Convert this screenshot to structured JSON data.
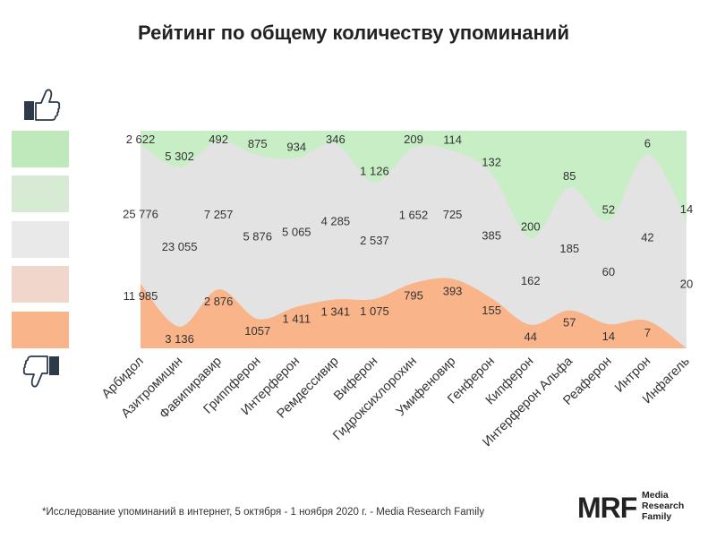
{
  "chart_data": {
    "type": "area",
    "title": "Рейтинг по общему количеству упоминаний",
    "categories": [
      "Арбидол",
      "Азитромицин",
      "Фавипиравир",
      "Гриппферон",
      "Интерферон",
      "Ремдессивир",
      "Виферон",
      "Гидроксихлорохин",
      "Умифеновир",
      "Генферон",
      "Кипферон",
      "Интерферон Альфа",
      "Реаферон",
      "Интрон",
      "Инфагель"
    ],
    "positive_labels": [
      "2 622",
      "5 302",
      "492",
      "875",
      "934",
      "346",
      "1 126",
      "209",
      "114",
      "132",
      "200",
      "85",
      "52",
      "6",
      "14"
    ],
    "neutral_labels": [
      "25 776",
      "23 055",
      "7 257",
      "5 876",
      "5 065",
      "4 285",
      "2 537",
      "1 652",
      "725",
      "385",
      "162",
      "185",
      "60",
      "42",
      "20"
    ],
    "negative_labels": [
      "11 985",
      "3 136",
      "2 876",
      "1057",
      "1 411",
      "1 341",
      "1 075",
      "795",
      "393",
      "155",
      "44",
      "57",
      "14",
      "7",
      ""
    ],
    "series": [
      {
        "key": "negative",
        "values": [
          11985,
          3136,
          2876,
          1057,
          1411,
          1341,
          1075,
          795,
          393,
          155,
          44,
          57,
          14,
          7,
          0
        ]
      },
      {
        "key": "neutral",
        "values": [
          25776,
          23055,
          7257,
          5876,
          5065,
          4285,
          2537,
          1652,
          725,
          385,
          162,
          185,
          60,
          42,
          20
        ]
      },
      {
        "key": "positive",
        "values": [
          2622,
          5302,
          492,
          875,
          934,
          346,
          1126,
          209,
          114,
          132,
          200,
          85,
          52,
          6,
          14
        ]
      }
    ],
    "stacking": "percent",
    "colors": {
      "positive": "#c8eec5",
      "neutral": "#e3e3e3",
      "negative": "#f9b48a"
    },
    "legend": {
      "placement": "left",
      "swatches": [
        "#bfe8bb",
        "#d7ead4",
        "#e9e9e9",
        "#f1d6cb",
        "#f9b48a"
      ],
      "top_icon": "thumbs-up-icon",
      "bottom_icon": "thumbs-down-icon"
    }
  },
  "footnote": "*Исследование упоминаний в интернет, 5 октября - 1 ноября 2020 г. - Media Research Family",
  "brand": {
    "logo": "MRF",
    "line1": "Media",
    "line2": "Research",
    "line3": "Family"
  }
}
